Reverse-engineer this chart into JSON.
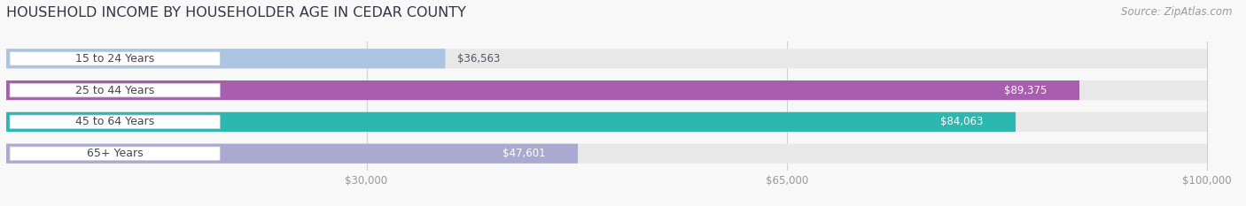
{
  "title": "HOUSEHOLD INCOME BY HOUSEHOLDER AGE IN CEDAR COUNTY",
  "source": "Source: ZipAtlas.com",
  "categories": [
    "15 to 24 Years",
    "25 to 44 Years",
    "45 to 64 Years",
    "65+ Years"
  ],
  "values": [
    36563,
    89375,
    84063,
    47601
  ],
  "bar_colors": [
    "#aac4e2",
    "#a85db0",
    "#2ab8b0",
    "#aааасс"
  ],
  "track_color": "#e8e8e8",
  "value_label_colors": [
    "#555566",
    "#ffffff",
    "#ffffff",
    "#555566"
  ],
  "x_min": 0,
  "x_max": 100000,
  "x_ticks": [
    30000,
    65000,
    100000
  ],
  "x_tick_labels": [
    "$30,000",
    "$65,000",
    "$100,000"
  ],
  "bar_height": 0.62,
  "background_color": "#f8f8f8",
  "label_pill_color": "#ffffff",
  "label_text_color": "#444455",
  "grid_color": "#d0d0d0",
  "title_color": "#333344",
  "source_color": "#999999"
}
